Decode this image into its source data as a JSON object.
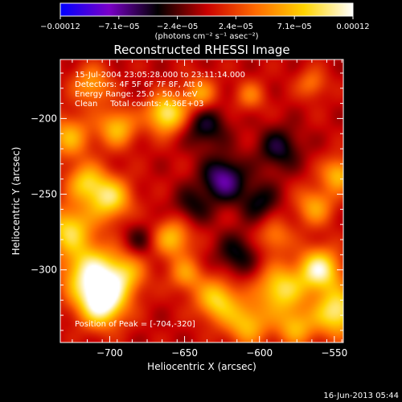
{
  "chart_data": {
    "type": "heatmap",
    "title": "Reconstructed RHESSI Image",
    "xlabel": "Heliocentric X (arcsec)",
    "ylabel": "Heliocentric Y (arcsec)",
    "xlim": [
      -733,
      -544
    ],
    "ylim": [
      -348,
      -161
    ],
    "x_ticks": [
      {
        "value": -700,
        "label": "−700"
      },
      {
        "value": -650,
        "label": "−650"
      },
      {
        "value": -600,
        "label": "−600"
      },
      {
        "value": -550,
        "label": "−550"
      }
    ],
    "y_ticks": [
      {
        "value": -200,
        "label": "−200"
      },
      {
        "value": -250,
        "label": "−250"
      },
      {
        "value": -300,
        "label": "−300"
      }
    ],
    "annotations": [
      "15-Jul-2004 23:05:28.000 to 23:11:14.000",
      "Detectors: 4F 5F 6F 7F 8F, Att 0",
      "Energy Range: 25.0 - 50.0 keV",
      "Clean     Total counts: 4.36E+03"
    ],
    "peak_text": "Position of Peak = [-704,-320]",
    "peak_position": [
      -704,
      -320
    ],
    "colorbar": {
      "min": -0.00012,
      "max": 0.00012,
      "tick_labels": [
        "−0.00012",
        "−7.1e−05",
        "−2.4e−05",
        "2.4e−05",
        "7.1e−05",
        "0.00012"
      ],
      "units_label": "(photons cm⁻² s⁻¹ asec⁻²)",
      "colormap": [
        "#0000ff",
        "#7a00c8",
        "#000000",
        "#c80000",
        "#ff6a00",
        "#ffd400",
        "#ffffff"
      ]
    },
    "blobs": [
      {
        "x": -705,
        "y": -322,
        "amp": 1.0,
        "s": 11
      },
      {
        "x": -713,
        "y": -302,
        "amp": 0.85,
        "s": 13
      },
      {
        "x": -690,
        "y": -303,
        "amp": 0.55,
        "s": 10
      },
      {
        "x": -727,
        "y": -273,
        "amp": 0.7,
        "s": 11
      },
      {
        "x": -700,
        "y": -253,
        "amp": 0.75,
        "s": 10
      },
      {
        "x": -716,
        "y": -242,
        "amp": 0.6,
        "s": 9
      },
      {
        "x": -727,
        "y": -212,
        "amp": 0.55,
        "s": 10
      },
      {
        "x": -695,
        "y": -206,
        "amp": 0.6,
        "s": 9
      },
      {
        "x": -662,
        "y": -197,
        "amp": 0.85,
        "s": 9
      },
      {
        "x": -640,
        "y": -184,
        "amp": 0.5,
        "s": 8
      },
      {
        "x": -712,
        "y": -178,
        "amp": 0.5,
        "s": 9
      },
      {
        "x": -658,
        "y": -279,
        "amp": 0.6,
        "s": 9
      },
      {
        "x": -649,
        "y": -303,
        "amp": 0.45,
        "s": 8
      },
      {
        "x": -628,
        "y": -320,
        "amp": 0.7,
        "s": 10
      },
      {
        "x": -608,
        "y": -336,
        "amp": 0.6,
        "s": 10
      },
      {
        "x": -586,
        "y": -313,
        "amp": 0.75,
        "s": 11
      },
      {
        "x": -560,
        "y": -300,
        "amp": 0.9,
        "s": 10
      },
      {
        "x": -548,
        "y": -328,
        "amp": 0.85,
        "s": 11
      },
      {
        "x": -576,
        "y": -338,
        "amp": 0.55,
        "s": 9
      },
      {
        "x": -563,
        "y": -258,
        "amp": 0.5,
        "s": 9
      },
      {
        "x": -547,
        "y": -237,
        "amp": 0.6,
        "s": 8
      },
      {
        "x": -590,
        "y": -278,
        "amp": 0.4,
        "s": 8
      },
      {
        "x": -606,
        "y": -185,
        "amp": 0.35,
        "s": 7
      },
      {
        "x": -565,
        "y": -177,
        "amp": 0.35,
        "s": 7
      },
      {
        "x": -624,
        "y": -240,
        "amp": -0.6,
        "s": 10
      },
      {
        "x": -636,
        "y": -205,
        "amp": -0.4,
        "s": 10
      },
      {
        "x": -587,
        "y": -220,
        "amp": -0.4,
        "s": 10
      },
      {
        "x": -615,
        "y": -290,
        "amp": -0.35,
        "s": 10
      },
      {
        "x": -645,
        "y": -258,
        "amp": -0.3,
        "s": 9
      },
      {
        "x": -600,
        "y": -255,
        "amp": -0.35,
        "s": 9
      },
      {
        "x": -680,
        "y": -280,
        "amp": -0.25,
        "s": 8
      }
    ]
  },
  "footer": {
    "timestamp": "16-Jun-2013 05:44"
  }
}
